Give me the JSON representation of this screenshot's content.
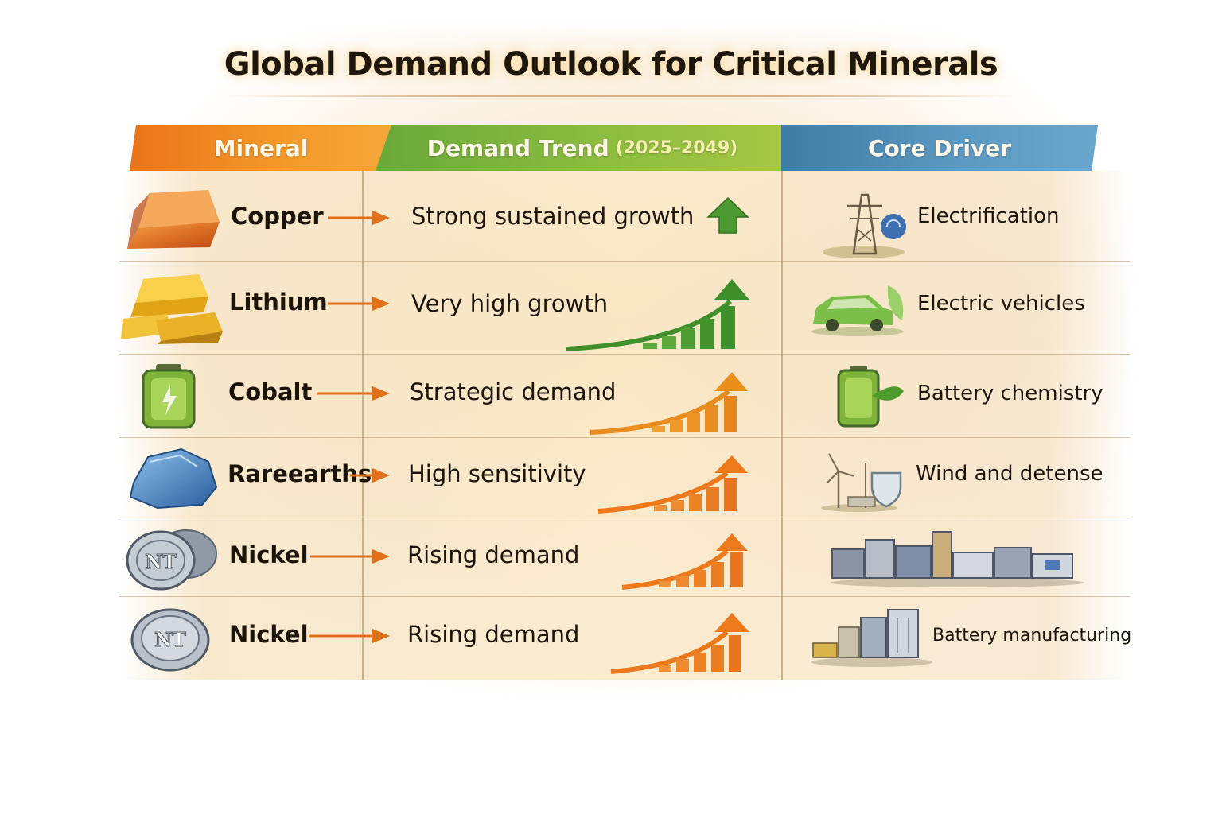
{
  "title": "Global Demand Outlook for Critical Minerals",
  "header": {
    "mineral": "Mineral",
    "trend": "Demand Trend",
    "trend_years": "(2025–2049)",
    "driver": "Core Driver"
  },
  "rows": [
    {
      "mineral": "Copper",
      "trend": "Strong sustained growth",
      "driver": "Electrification",
      "mineral_icon": "copper-ingot-icon",
      "trend_icon": "green-up-arrow-icon",
      "driver_icon": "power-tower-icon"
    },
    {
      "mineral": "Lithium",
      "trend": "Very high growth",
      "driver": "Electric vehicles",
      "mineral_icon": "gold-bars-icon",
      "trend_icon": "green-growth-chart-icon",
      "driver_icon": "electric-car-icon"
    },
    {
      "mineral": "Cobalt",
      "trend": "Strategic demand",
      "driver": "Battery chemistry",
      "mineral_icon": "battery-cell-icon",
      "trend_icon": "orange-growth-chart-icon",
      "driver_icon": "battery-leaf-icon"
    },
    {
      "mineral": "Rareearths",
      "trend": "High sensitivity",
      "driver": "Wind and detense",
      "mineral_icon": "blue-ore-icon",
      "trend_icon": "orange-growth-chart-icon",
      "driver_icon": "wind-turbine-shield-icon"
    },
    {
      "mineral": "Nickel",
      "trend": "Rising demand",
      "driver": "",
      "mineral_icon": "nickel-coin-icon",
      "coin_label": "NT",
      "trend_icon": "orange-growth-chart-icon",
      "driver_icon": "industrial-plant-icon"
    },
    {
      "mineral": "Nickel",
      "trend": "Rising demand",
      "driver": "Battery manufacturing",
      "mineral_icon": "nickel-coin-icon",
      "coin_label": "NT",
      "trend_icon": "orange-growth-chart-icon",
      "driver_icon": "factory-icon"
    }
  ],
  "colors": {
    "mineral_header": "#ef8a22",
    "trend_header": "#7db43c",
    "driver_header": "#4d8db8",
    "link_arrow": "#e2701a",
    "growth_green": "#3f8f2a",
    "growth_orange": "#ec7a1c"
  }
}
